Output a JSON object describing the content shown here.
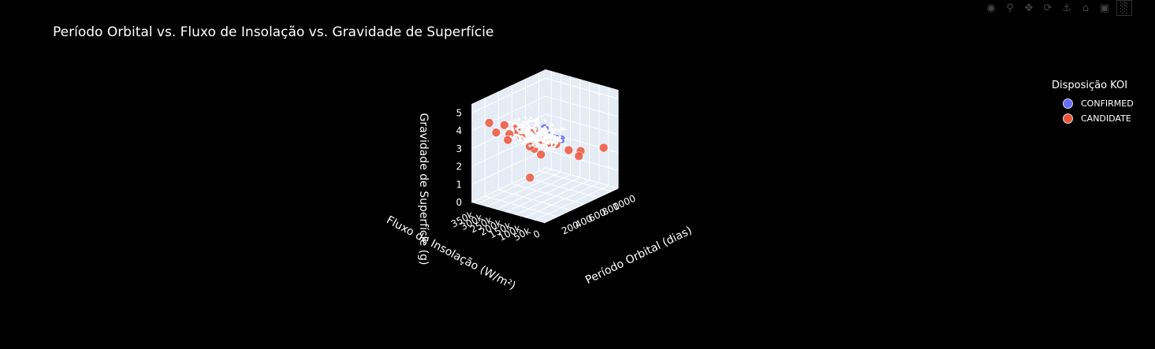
{
  "chart_data": {
    "type": "scatter3d",
    "title": "Período Orbital vs. Fluxo de Insolação vs. Gravidade de Superfície",
    "legend_title": "Disposição KOI",
    "axes": {
      "x": {
        "label": "Período Orbital (dias)",
        "ticks": [
          "200",
          "400",
          "600",
          "800",
          "1000"
        ],
        "range": [
          0,
          1100
        ]
      },
      "y": {
        "label": "Fluxo de Insolação (W/m²)",
        "ticks": [
          "0",
          "50k",
          "100k",
          "150k",
          "200k",
          "250k",
          "300k",
          "350k"
        ],
        "range": [
          0,
          380000
        ]
      },
      "z": {
        "label": "Gravidade de Superfície (g)",
        "ticks": [
          "0",
          "1",
          "2",
          "3",
          "4",
          "5"
        ],
        "range": [
          0,
          5.5
        ]
      }
    },
    "series": [
      {
        "name": "CONFIRMED",
        "color": "#636efa",
        "points": [
          [
            180,
            60000,
            4.8
          ],
          [
            220,
            40000,
            4.4
          ],
          [
            150,
            90000,
            4.6
          ],
          [
            250,
            20000,
            4.2
          ],
          [
            300,
            15000,
            4.1
          ]
        ]
      },
      {
        "name": "CANDIDATE",
        "color": "#ef553b",
        "points": [
          [
            120,
            250000,
            4.5
          ],
          [
            160,
            200000,
            4.4
          ],
          [
            130,
            180000,
            4.3
          ],
          [
            90,
            150000,
            4.2
          ],
          [
            200,
            120000,
            4.4
          ],
          [
            110,
            220000,
            4.1
          ],
          [
            140,
            300000,
            3.9
          ],
          [
            250,
            100000,
            3.9
          ],
          [
            280,
            80000,
            3.7
          ],
          [
            350,
            60000,
            3.6
          ],
          [
            480,
            40000,
            3.1
          ],
          [
            600,
            20000,
            2.9
          ],
          [
            560,
            15000,
            2.7
          ],
          [
            900,
            5000,
            2.6
          ],
          [
            420,
            200000,
            2.8
          ],
          [
            380,
            150000,
            2.7
          ],
          [
            300,
            180000,
            3.2
          ],
          [
            200,
            260000,
            3.5
          ],
          [
            150,
            340000,
            4.3
          ],
          [
            500,
            250000,
            0.9
          ]
        ]
      }
    ],
    "cluster_color": "#ffffff"
  },
  "modebar": [
    "camera-icon",
    "zoom-icon",
    "pan-icon",
    "orbit-icon",
    "turntable-icon",
    "home-icon",
    "reset-camera-icon",
    "plotly-logo-icon"
  ]
}
